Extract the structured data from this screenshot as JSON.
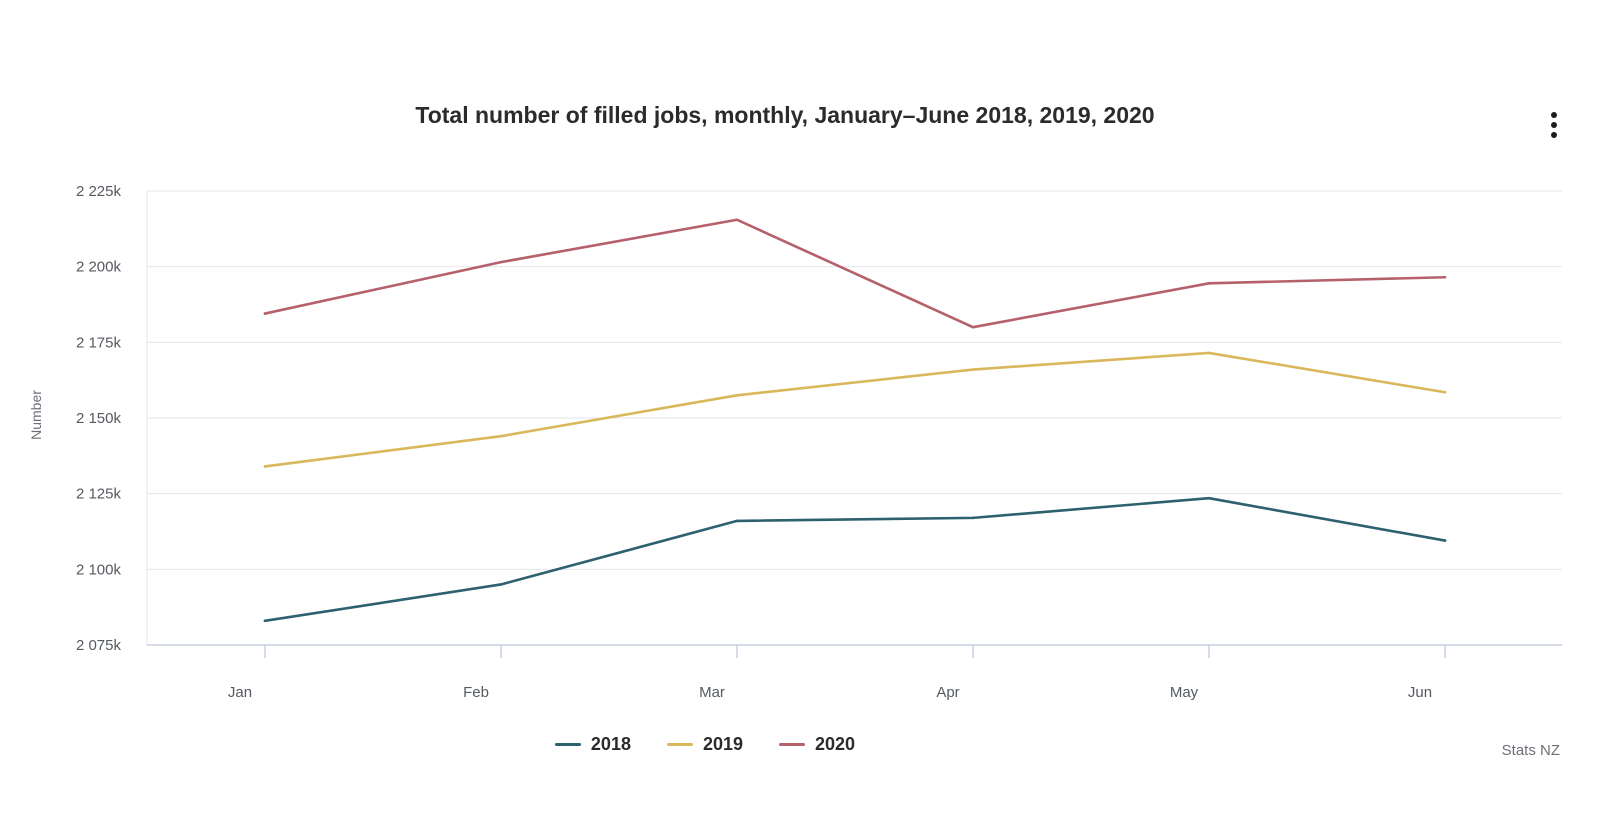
{
  "chart_data": {
    "type": "line",
    "title": "Total number of filled jobs, monthly, January–June 2018, 2019, 2020",
    "xlabel": "",
    "ylabel": "Number",
    "categories": [
      "Jan",
      "Feb",
      "Mar",
      "Apr",
      "May",
      "Jun"
    ],
    "ylim": [
      2075000,
      2225000
    ],
    "yticks": [
      2075000,
      2100000,
      2125000,
      2150000,
      2175000,
      2200000,
      2225000
    ],
    "ytick_labels": [
      "2 075k",
      "2 100k",
      "2 125k",
      "2 150k",
      "2 175k",
      "2 200k",
      "2 225k"
    ],
    "grid": true,
    "legend_position": "bottom-center",
    "series": [
      {
        "name": "2018",
        "color": "#2e6170",
        "values": [
          2083000,
          2095000,
          2116000,
          2117000,
          2123500,
          2109500
        ]
      },
      {
        "name": "2019",
        "color": "#d9b85c",
        "values": [
          2134000,
          2144000,
          2157500,
          2166000,
          2171500,
          2158500
        ]
      },
      {
        "name": "2020",
        "color": "#b5606b",
        "values": [
          2184500,
          2201500,
          2215500,
          2180000,
          2194500,
          2196500
        ]
      }
    ],
    "credit": "Stats NZ"
  },
  "ui": {
    "menu_icon": "vertical-ellipsis-icon",
    "menu_color": "#1b1b1b"
  }
}
